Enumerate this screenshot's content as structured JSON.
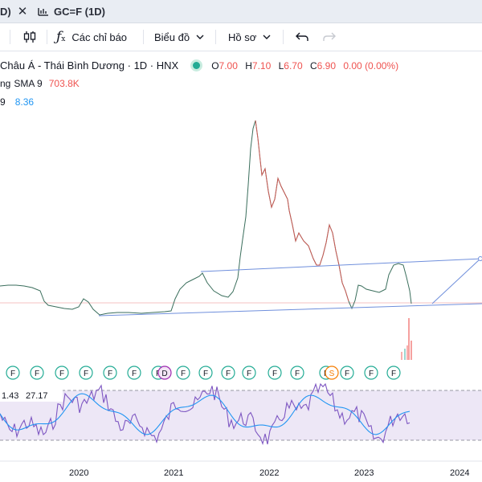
{
  "tabs": [
    {
      "label": "D)"
    },
    {
      "label": "GC=F (1D)"
    }
  ],
  "toolbar": {
    "indicators_label": "Các chỉ báo",
    "chart_label": "Biểu đồ",
    "profile_label": "Hồ sơ"
  },
  "legend": {
    "symbol_title": "Châu Á - Thái Bình Dương · 1D · HNX",
    "ohlc": [
      {
        "k": "O",
        "v": "7.00"
      },
      {
        "k": "H",
        "v": "7.10"
      },
      {
        "k": "L",
        "v": "6.70"
      },
      {
        "k": "C",
        "v": "6.90"
      }
    ],
    "change": "0.00 (0.00%)",
    "volume_prefix": "ng",
    "volume_name": "SMA 9",
    "volume_value": "703.8K",
    "rsi_prefix": "9",
    "rsi_value": "8.36",
    "rsi_value_a": "1.43",
    "rsi_value_b": "27.17"
  },
  "x_axis": [
    "2020",
    "2021",
    "2022",
    "2023",
    "2024"
  ],
  "event_markers": [
    "F",
    "F",
    "F",
    "F",
    "F",
    "F",
    "F",
    "D",
    "F",
    "F",
    "F",
    "F",
    "F",
    "F",
    "F",
    "S",
    "F",
    "F",
    "F",
    "F"
  ],
  "colors": {
    "up": "#26a69a",
    "down": "#ef5350",
    "trendline": "#6f8fdc",
    "rsi": "#7e57c2",
    "rsi_ma": "#2196f3",
    "rsi_band": "#ede7f6",
    "marker_f": "#22ab94",
    "marker_d": "#9c27b0",
    "marker_s": "#f57c00"
  }
}
